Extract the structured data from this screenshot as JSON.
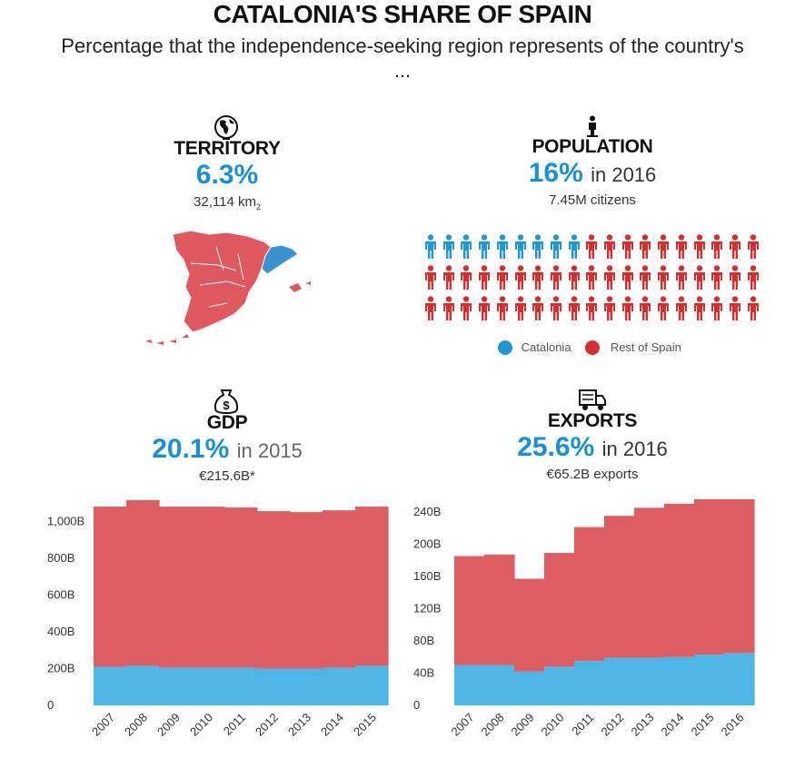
{
  "header": {
    "title": "CATALONIA'S SHARE OF SPAIN",
    "subtitle": "Percentage that the independence-seeking region represents of the country's ..."
  },
  "territory": {
    "icon": "globe-icon",
    "label": "TERRITORY",
    "percent": "6.3%",
    "detail": "32,114 km",
    "unit_sub": "2"
  },
  "population": {
    "icon": "person-icon",
    "label": "POPULATION",
    "percent": "16%",
    "year": "in 2016",
    "detail": "7.45M citizens",
    "pictogram": {
      "total": 57,
      "catalonia": 9,
      "per_row": 19
    },
    "legend": {
      "catalonia": "Catalonia",
      "rest": "Rest of Spain"
    },
    "colors": {
      "catalonia": "#2196d3",
      "rest": "#d32f2f"
    }
  },
  "gdp": {
    "icon": "money-bag-icon",
    "label": "GDP",
    "percent": "20.1%",
    "year": "in 2015",
    "detail": "€215.6B*"
  },
  "exports": {
    "icon": "truck-icon",
    "label": "EXPORTS",
    "percent": "25.6%",
    "year": "in 2016",
    "detail": "€65.2B exports"
  },
  "chart_data": [
    {
      "type": "bar",
      "name": "gdp",
      "title": "GDP",
      "categories": [
        "2007",
        "2008",
        "2009",
        "2010",
        "2011",
        "2012",
        "2013",
        "2014",
        "2015"
      ],
      "series": [
        {
          "name": "Catalonia",
          "color": "#4db6e6",
          "values": [
            210,
            215,
            205,
            205,
            205,
            200,
            200,
            205,
            215
          ]
        },
        {
          "name": "Rest of Spain",
          "color": "#dc5d62",
          "values": [
            870,
            900,
            875,
            875,
            870,
            855,
            850,
            855,
            865
          ]
        }
      ],
      "ylim": [
        0,
        1100
      ],
      "yticks": [
        0,
        200,
        400,
        600,
        800,
        1000
      ],
      "ytick_labels": [
        "0",
        "200B",
        "400B",
        "600B",
        "800B",
        "1,000B"
      ]
    },
    {
      "type": "bar",
      "name": "exports",
      "title": "EXPORTS",
      "categories": [
        "2007",
        "2008",
        "2009",
        "2010",
        "2011",
        "2012",
        "2013",
        "2014",
        "2015",
        "2016"
      ],
      "series": [
        {
          "name": "Catalonia",
          "color": "#4db6e6",
          "values": [
            50,
            50,
            42,
            48,
            55,
            59,
            59,
            60,
            63,
            65
          ]
        },
        {
          "name": "Rest of Spain",
          "color": "#dc5d62",
          "values": [
            135,
            137,
            115,
            141,
            166,
            176,
            186,
            190,
            195,
            195
          ]
        }
      ],
      "ylim": [
        0,
        260
      ],
      "yticks": [
        0,
        40,
        80,
        120,
        160,
        200,
        240
      ],
      "ytick_labels": [
        "0",
        "40B",
        "80B",
        "120B",
        "160B",
        "200B",
        "240B"
      ]
    }
  ]
}
